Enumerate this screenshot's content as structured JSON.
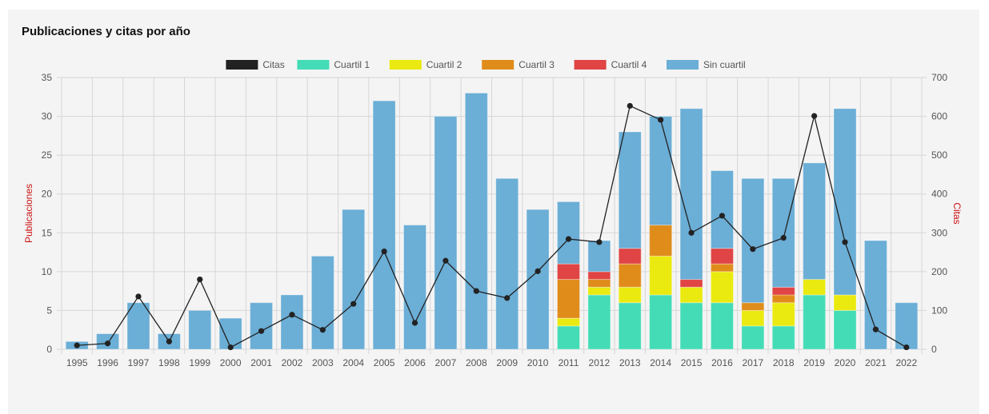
{
  "card": {
    "title": "Publicaciones y citas por año"
  },
  "chart_data": {
    "type": "bar",
    "title": "Publicaciones y citas por año",
    "categories": [
      "1995",
      "1996",
      "1997",
      "1998",
      "1999",
      "2000",
      "2001",
      "2002",
      "2003",
      "2004",
      "2005",
      "2006",
      "2007",
      "2008",
      "2009",
      "2010",
      "2011",
      "2012",
      "2013",
      "2014",
      "2015",
      "2016",
      "2017",
      "2018",
      "2019",
      "2020",
      "2021",
      "2022"
    ],
    "stacked": true,
    "series": [
      {
        "name": "Cuartil 1",
        "color": "#44dcb6",
        "values": [
          0,
          0,
          0,
          0,
          0,
          0,
          0,
          0,
          0,
          0,
          0,
          0,
          0,
          0,
          0,
          0,
          3,
          7,
          6,
          7,
          6,
          6,
          3,
          3,
          7,
          5,
          0,
          0
        ]
      },
      {
        "name": "Cuartil 2",
        "color": "#eaea10",
        "values": [
          0,
          0,
          0,
          0,
          0,
          0,
          0,
          0,
          0,
          0,
          0,
          0,
          0,
          0,
          0,
          0,
          1,
          1,
          2,
          5,
          2,
          4,
          2,
          3,
          2,
          2,
          0,
          0
        ]
      },
      {
        "name": "Cuartil 3",
        "color": "#e08c1b",
        "values": [
          0,
          0,
          0,
          0,
          0,
          0,
          0,
          0,
          0,
          0,
          0,
          0,
          0,
          0,
          0,
          0,
          5,
          1,
          3,
          4,
          0,
          1,
          1,
          1,
          0,
          0,
          0,
          0
        ]
      },
      {
        "name": "Cuartil 4",
        "color": "#e04444",
        "values": [
          0,
          0,
          0,
          0,
          0,
          0,
          0,
          0,
          0,
          0,
          0,
          0,
          0,
          0,
          0,
          0,
          2,
          1,
          2,
          0,
          1,
          2,
          0,
          1,
          0,
          0,
          0,
          0
        ]
      },
      {
        "name": "Sin cuartil",
        "color": "#6baed6",
        "values": [
          1,
          2,
          6,
          2,
          5,
          4,
          6,
          7,
          12,
          18,
          32,
          16,
          30,
          33,
          22,
          18,
          8,
          4,
          15,
          14,
          22,
          10,
          16,
          14,
          15,
          24,
          14,
          6
        ]
      }
    ],
    "line_series": {
      "name": "Citas",
      "color": "#222222",
      "axis": "right",
      "values": [
        10,
        15,
        136,
        20,
        180,
        5,
        47,
        89,
        50,
        117,
        252,
        68,
        228,
        150,
        132,
        201,
        284,
        276,
        627,
        591,
        300,
        344,
        258,
        287,
        601,
        276,
        51,
        5
      ]
    },
    "legend": {
      "position": "top",
      "order": [
        "Citas",
        "Cuartil 1",
        "Cuartil 2",
        "Cuartil 3",
        "Cuartil 4",
        "Sin cuartil"
      ]
    },
    "y_left": {
      "label": "Publicaciones",
      "min": 0,
      "max": 35,
      "ticks": [
        0,
        5,
        10,
        15,
        20,
        25,
        30,
        35
      ]
    },
    "y_right": {
      "label": "Citas",
      "min": 0,
      "max": 700,
      "ticks": [
        0,
        100,
        200,
        300,
        400,
        500,
        600,
        700
      ]
    },
    "grid": true
  }
}
